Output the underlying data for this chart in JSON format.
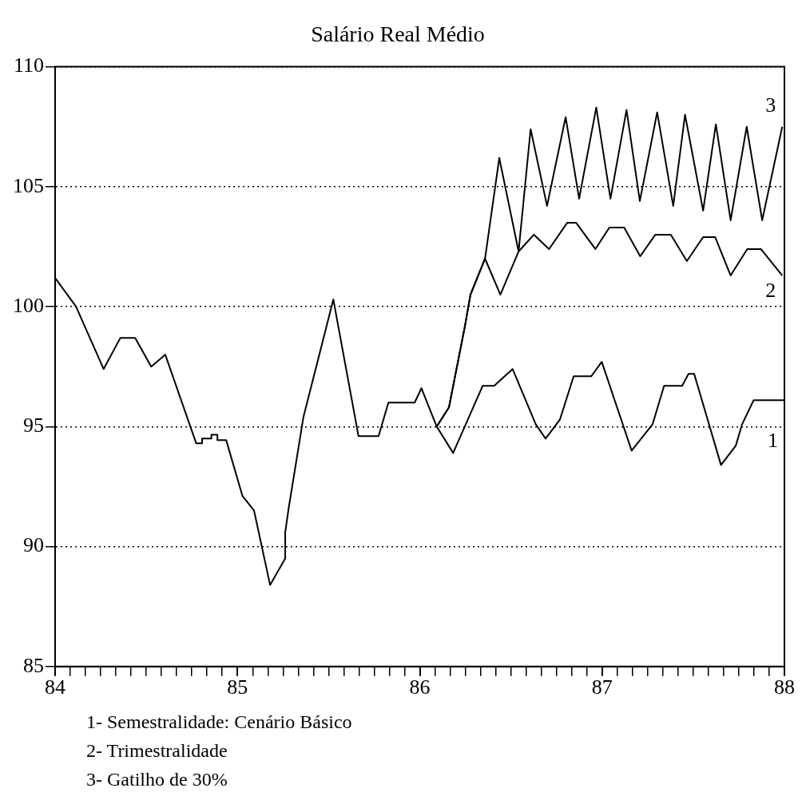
{
  "chart_data": {
    "type": "line",
    "title": "Salário Real Médio",
    "xlim": [
      84,
      88
    ],
    "ylim": [
      85,
      110
    ],
    "xticks": [
      84,
      {
        "value": 84.0833,
        "label": null
      },
      {
        "value": 84.1667,
        "label": null
      },
      {
        "value": 84.25,
        "label": null
      },
      {
        "value": 84.3333,
        "label": null
      },
      {
        "value": 84.4167,
        "label": null
      },
      {
        "value": 84.5,
        "label": null
      },
      {
        "value": 84.5833,
        "label": null
      },
      {
        "value": 84.6667,
        "label": null
      },
      {
        "value": 84.75,
        "label": null
      },
      {
        "value": 84.8333,
        "label": null
      },
      {
        "value": 84.9167,
        "label": null
      },
      85,
      {
        "value": 85.0833,
        "label": null
      },
      {
        "value": 85.1667,
        "label": null
      },
      {
        "value": 85.25,
        "label": null
      },
      {
        "value": 85.3333,
        "label": null
      },
      {
        "value": 85.4167,
        "label": null
      },
      {
        "value": 85.5,
        "label": null
      },
      {
        "value": 85.5833,
        "label": null
      },
      {
        "value": 85.6667,
        "label": null
      },
      {
        "value": 85.75,
        "label": null
      },
      {
        "value": 85.8333,
        "label": null
      },
      {
        "value": 85.9167,
        "label": null
      },
      86,
      {
        "value": 86.0833,
        "label": null
      },
      {
        "value": 86.1667,
        "label": null
      },
      {
        "value": 86.25,
        "label": null
      },
      {
        "value": 86.3333,
        "label": null
      },
      {
        "value": 86.4167,
        "label": null
      },
      {
        "value": 86.5,
        "label": null
      },
      {
        "value": 86.5833,
        "label": null
      },
      {
        "value": 86.6667,
        "label": null
      },
      {
        "value": 86.75,
        "label": null
      },
      {
        "value": 86.8333,
        "label": null
      },
      {
        "value": 86.9167,
        "label": null
      },
      87,
      {
        "value": 87.0833,
        "label": null
      },
      {
        "value": 87.1667,
        "label": null
      },
      {
        "value": 87.25,
        "label": null
      },
      {
        "value": 87.3333,
        "label": null
      },
      {
        "value": 87.4167,
        "label": null
      },
      {
        "value": 87.5,
        "label": null
      },
      {
        "value": 87.5833,
        "label": null
      },
      {
        "value": 87.6667,
        "label": null
      },
      {
        "value": 87.75,
        "label": null
      },
      {
        "value": 87.8333,
        "label": null
      },
      {
        "value": 87.9167,
        "label": null
      },
      88
    ],
    "yticks": [
      85,
      90,
      95,
      100,
      105,
      110
    ],
    "grid": "y",
    "marker": "none",
    "line_style": "solid",
    "series": [
      {
        "name": "1",
        "color": "#000000",
        "x": [
          84.0,
          84.115,
          84.266,
          84.358,
          84.439,
          84.527,
          84.604,
          84.774,
          84.806,
          84.806,
          84.857,
          84.857,
          84.89,
          84.89,
          84.938,
          85.028,
          85.091,
          85.179,
          85.262,
          85.262,
          85.281,
          85.362,
          85.526,
          85.664,
          85.774,
          85.828,
          85.943,
          85.972,
          86.009,
          86.093,
          86.183,
          86.345,
          86.408,
          86.509,
          86.636,
          86.69,
          86.769,
          86.844,
          86.941,
          86.998,
          87.162,
          87.277,
          87.34,
          87.439,
          87.474,
          87.505,
          87.652,
          87.733,
          87.768,
          87.831,
          87.945,
          88.0
        ],
        "values": [
          101.2,
          100.0,
          97.4,
          98.7,
          98.7,
          97.5,
          98.0,
          94.3,
          94.3,
          94.5,
          94.5,
          94.66,
          94.66,
          94.44,
          94.44,
          92.1,
          91.5,
          88.4,
          89.5,
          90.6,
          91.6,
          95.4,
          100.3,
          94.6,
          94.6,
          96.0,
          96.0,
          96.0,
          96.6,
          95.0,
          93.9,
          96.7,
          96.7,
          97.4,
          95.1,
          94.5,
          95.3,
          97.1,
          97.1,
          97.7,
          94.0,
          95.1,
          96.7,
          96.7,
          97.2,
          97.2,
          93.4,
          94.2,
          95.1,
          96.1,
          96.1,
          96.1
        ]
      },
      {
        "name": "2",
        "color": "#000000",
        "x": [
          86.093,
          86.16,
          86.248,
          86.278,
          86.358,
          86.442,
          86.542,
          86.626,
          86.709,
          86.809,
          86.857,
          86.963,
          87.04,
          87.121,
          87.209,
          87.292,
          87.377,
          87.465,
          87.554,
          87.62,
          87.705,
          87.796,
          87.871,
          87.988
        ],
        "values": [
          95.0,
          95.8,
          99.2,
          100.5,
          102.0,
          100.5,
          102.3,
          103.0,
          102.4,
          103.5,
          103.5,
          102.4,
          103.3,
          103.3,
          102.1,
          103.0,
          103.0,
          101.9,
          102.9,
          102.9,
          101.3,
          102.4,
          102.4,
          101.3
        ]
      },
      {
        "name": "3",
        "color": "#000000",
        "x": [
          86.093,
          86.16,
          86.248,
          86.278,
          86.358,
          86.436,
          86.542,
          86.608,
          86.698,
          86.8,
          86.874,
          86.968,
          87.046,
          87.134,
          87.207,
          87.302,
          87.39,
          87.455,
          87.554,
          87.624,
          87.705,
          87.793,
          87.878,
          87.988
        ],
        "values": [
          95.0,
          95.8,
          99.2,
          100.5,
          102.0,
          106.2,
          102.3,
          107.4,
          104.2,
          107.9,
          104.5,
          108.3,
          104.5,
          108.2,
          104.4,
          108.1,
          104.2,
          108.0,
          104.0,
          107.6,
          103.6,
          107.5,
          103.6,
          107.5
        ]
      }
    ],
    "annotations": [
      "1- Semestralidade: Cenário Básico",
      "2- Trimestralidade",
      "3- Gatilho de 30%"
    ]
  }
}
